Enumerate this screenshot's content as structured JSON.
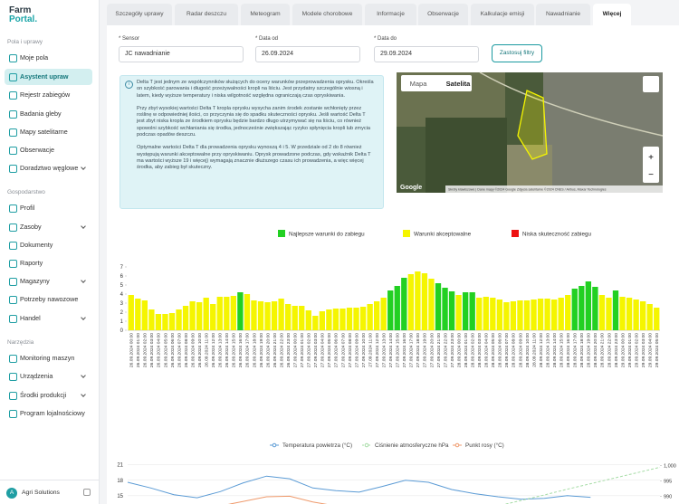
{
  "brand": {
    "line1": "Farm",
    "line2": "Portal."
  },
  "sidebar": [
    {
      "heading": "Pola i uprawy",
      "items": [
        "Moje pola",
        "Asystent upraw",
        "Rejestr zabiegów",
        "Badania gleby",
        "Mapy satelitarne",
        "Obserwacje",
        "Doradztwo węglowe"
      ]
    },
    {
      "heading": "Gospodarstwo",
      "items": [
        "Profil",
        "Zasoby",
        "Dokumenty",
        "Raporty",
        "Magazyny",
        "Potrzeby nawozowe",
        "Handel"
      ]
    },
    {
      "heading": "Narzędzia",
      "items": [
        "Monitoring maszyn",
        "Urządzenia",
        "Środki produkcji",
        "Program lojalnościowy"
      ]
    }
  ],
  "account": {
    "avatar": "A",
    "name": "Agri Solutions"
  },
  "tabs": [
    "Szczegóły uprawy",
    "Radar deszczu",
    "Meteogram",
    "Modele chorobowe",
    "Informacje",
    "Obserwacje",
    "Kalkulacje emisji",
    "Nawadnianie",
    "Więcej"
  ],
  "filters": {
    "sensor_label": "* Sensor",
    "sensor_value": "JC nawadnianie",
    "from_label": "* Data od",
    "from_value": "26.09.2024",
    "to_label": "* Data do",
    "to_value": "29.09.2024",
    "button": "Zastosuj filtry"
  },
  "info": [
    "Delta T jest jednym ze współczynników służących do oceny warunków przeprowadzenia oprysku. Określa on szybkość parowania i długość przeżywalności kropli na liściu. Jest przydatny szczególnie wiosną i latem, kiedy wyższe temperatury i niska wilgotność względna ograniczają czas opryskiwania.",
    "Przy zbyt wysokiej wartości Delta T kropla oprysku wysycha zanim środek zostanie wchłonięty przez roślinę w odpowiedniej ilości, co przyczynia się do spadku skuteczności oprysku. Jeśli wartość Delta T jest zbyt niska kropla ze środkiem oprysku będzie bardzo długo utrzymywać się na liściu, co również spowolni szybkość wchłaniania się środka, jednocześnie zwiększając ryzyko spłynięcia kropli lub zmycia podczas opadów deszczu.",
    "Optymalne wartości Delta T dla prowadzenia oprysku wynoszą 4 i 5. W przedziale od 2 do 8 również występują warunki akceptowalne przy opryskiwaniu. Oprysk prowadzone podczas, gdy wskaźnik Delta T ma wartości wyższe 19 i więcej) wymagają znacznie dłuższego czasu ich prowadzenia, a więc więcej środka, aby zabieg był skuteczny."
  ],
  "map": {
    "buttons": [
      "Mapa",
      "Satelita"
    ],
    "logo": "Google",
    "attribution": "Skróty klawiszowe | Dane mapy ©2024 Google Zdjęcia satelitarne ©2024 CNES / Airbus, Maxar Technologies"
  },
  "chart_data": [
    {
      "type": "bar",
      "categories": [
        "26.09.2024 00:00",
        "26.09.2024 01:00",
        "26.09.2024 02:00",
        "26.09.2024 03:00",
        "26.09.2024 04:00",
        "26.09.2024 05:00",
        "26.09.2024 06:00",
        "26.09.2024 07:00",
        "26.09.2024 08:00",
        "26.09.2024 09:00",
        "26.09.2024 10:00",
        "26.09.2024 11:00",
        "26.09.2024 12:00",
        "26.09.2024 13:00",
        "26.09.2024 14:00",
        "26.09.2024 15:00",
        "26.09.2024 16:00",
        "26.09.2024 17:00",
        "26.09.2024 18:00",
        "26.09.2024 19:00",
        "26.09.2024 20:00",
        "26.09.2024 21:00",
        "26.09.2024 22:00",
        "26.09.2024 23:00",
        "27.09.2024 00:00",
        "27.09.2024 01:00",
        "27.09.2024 02:00",
        "27.09.2024 03:00",
        "27.09.2024 04:00",
        "27.09.2024 05:00",
        "27.09.2024 06:00",
        "27.09.2024 07:00",
        "27.09.2024 08:00",
        "27.09.2024 09:00",
        "27.09.2024 10:00",
        "27.09.2024 11:00",
        "27.09.2024 12:00",
        "27.09.2024 13:00",
        "27.09.2024 14:00",
        "27.09.2024 15:00",
        "27.09.2024 16:00",
        "27.09.2024 17:00",
        "27.09.2024 18:00",
        "27.09.2024 19:00",
        "27.09.2024 20:00",
        "27.09.2024 21:00",
        "27.09.2024 22:00",
        "27.09.2024 23:00",
        "28.09.2024 00:00",
        "28.09.2024 01:00",
        "28.09.2024 02:00",
        "28.09.2024 03:00",
        "28.09.2024 04:00",
        "28.09.2024 05:00",
        "28.09.2024 06:00",
        "28.09.2024 07:00",
        "28.09.2024 08:00",
        "28.09.2024 09:00",
        "28.09.2024 10:00",
        "28.09.2024 11:00",
        "28.09.2024 12:00",
        "28.09.2024 13:00",
        "28.09.2024 14:00",
        "28.09.2024 15:00",
        "28.09.2024 16:00",
        "28.09.2024 17:00",
        "28.09.2024 18:00",
        "28.09.2024 19:00",
        "28.09.2024 20:00",
        "28.09.2024 21:00",
        "28.09.2024 22:00",
        "28.09.2024 23:00",
        "29.09.2024 00:00",
        "29.09.2024 01:00",
        "29.09.2024 02:00",
        "29.09.2024 03:00",
        "29.09.2024 04:00",
        "29.09.2024 05:00"
      ],
      "series": [
        {
          "name": "Najlepsze warunki do zabiegu",
          "color": "#22d022",
          "values": [
            null,
            null,
            null,
            null,
            null,
            null,
            null,
            null,
            null,
            null,
            null,
            null,
            null,
            null,
            null,
            null,
            4.2,
            null,
            null,
            null,
            null,
            null,
            null,
            null,
            null,
            null,
            null,
            null,
            null,
            null,
            null,
            null,
            null,
            null,
            null,
            null,
            null,
            null,
            4.4,
            4.9,
            5.8,
            null,
            null,
            null,
            null,
            5.2,
            4.7,
            4.3,
            null,
            4.2,
            4.2,
            null,
            null,
            null,
            null,
            null,
            null,
            null,
            null,
            null,
            null,
            null,
            null,
            null,
            null,
            4.6,
            4.9,
            5.4,
            4.8,
            null,
            null,
            4.4,
            null,
            null,
            null,
            null,
            null,
            null
          ]
        },
        {
          "name": "Warunki akceptowalne",
          "color": "#f5f500",
          "values": [
            3.9,
            3.5,
            3.3,
            2.3,
            1.8,
            1.8,
            1.9,
            2.3,
            2.7,
            3.2,
            3.1,
            3.6,
            2.9,
            3.7,
            3.7,
            3.8,
            null,
            4.0,
            3.3,
            3.2,
            3.1,
            3.2,
            3.5,
            2.9,
            2.7,
            2.7,
            2.2,
            1.6,
            2.1,
            2.3,
            2.4,
            2.4,
            2.5,
            2.5,
            2.6,
            2.9,
            3.2,
            3.6,
            null,
            null,
            null,
            6.2,
            6.5,
            6.3,
            5.7,
            null,
            null,
            null,
            3.9,
            null,
            null,
            3.6,
            3.7,
            3.6,
            3.4,
            3.1,
            3.2,
            3.3,
            3.3,
            3.4,
            3.5,
            3.5,
            3.4,
            3.6,
            3.9,
            null,
            null,
            null,
            null,
            3.9,
            3.6,
            null,
            3.7,
            3.6,
            3.4,
            3.2,
            2.9,
            2.5
          ]
        },
        {
          "name": "Niska skuteczność zabiegu",
          "color": "#ee1111",
          "values": [
            null,
            null,
            null,
            null,
            null,
            null,
            null,
            null,
            null,
            null,
            null,
            null,
            null,
            null,
            null,
            null,
            null,
            null,
            null,
            null,
            null,
            null,
            null,
            null,
            null,
            null,
            null,
            null,
            null,
            null,
            null,
            null,
            null,
            null,
            null,
            null,
            null,
            null,
            null,
            null,
            null,
            null,
            null,
            null,
            null,
            null,
            null,
            null,
            null,
            null,
            null,
            null,
            null,
            null,
            null,
            null,
            null,
            null,
            null,
            null,
            null,
            null,
            null,
            null,
            null,
            null,
            null,
            null,
            null,
            null,
            null,
            null,
            null,
            null,
            null,
            null,
            null,
            null
          ]
        }
      ],
      "ylim": [
        0,
        7
      ],
      "yticks": [
        0,
        1,
        2,
        3,
        4,
        5,
        6,
        7
      ],
      "legend": "top"
    },
    {
      "type": "line",
      "series": [
        {
          "name": "Temperatura powietrza (°C)",
          "color": "#5b9bd5",
          "values": [
            17.6,
            16.5,
            15.2,
            14.6,
            15.8,
            17.5,
            18.8,
            18.3,
            16.5,
            16.0,
            15.7,
            16.8,
            18.0,
            17.6,
            16.2,
            15.4,
            14.8,
            14.3,
            14.5,
            15.0,
            14.7,
            null,
            null,
            null
          ]
        },
        {
          "name": "Ciśnienie atmosferyczne hPa",
          "color": "#a6dca6",
          "dashed": true,
          "axis": "y2",
          "values": [
            null,
            null,
            null,
            null,
            null,
            null,
            null,
            null,
            null,
            null,
            null,
            null,
            null,
            null,
            null,
            985.0,
            986.8,
            988.6,
            990.4,
            992.3,
            994.1,
            995.9,
            997.7,
            999.5
          ]
        },
        {
          "name": "Punkt rosy (°C)",
          "color": "#ef9a6c",
          "values": [
            null,
            null,
            null,
            12.5,
            13.0,
            13.9,
            14.8,
            14.9,
            13.8,
            13.0,
            null,
            null,
            null,
            null,
            null,
            null,
            null,
            null,
            null,
            null,
            null,
            null,
            null,
            null
          ]
        }
      ],
      "ylim": [
        9,
        22
      ],
      "yticks": [
        15,
        18,
        21
      ],
      "y2lim": [
        980,
        1002
      ],
      "y2ticks": [
        {
          "value": 1000,
          "label": "1,000"
        },
        995,
        990
      ],
      "grid": true,
      "legend": "top"
    }
  ]
}
